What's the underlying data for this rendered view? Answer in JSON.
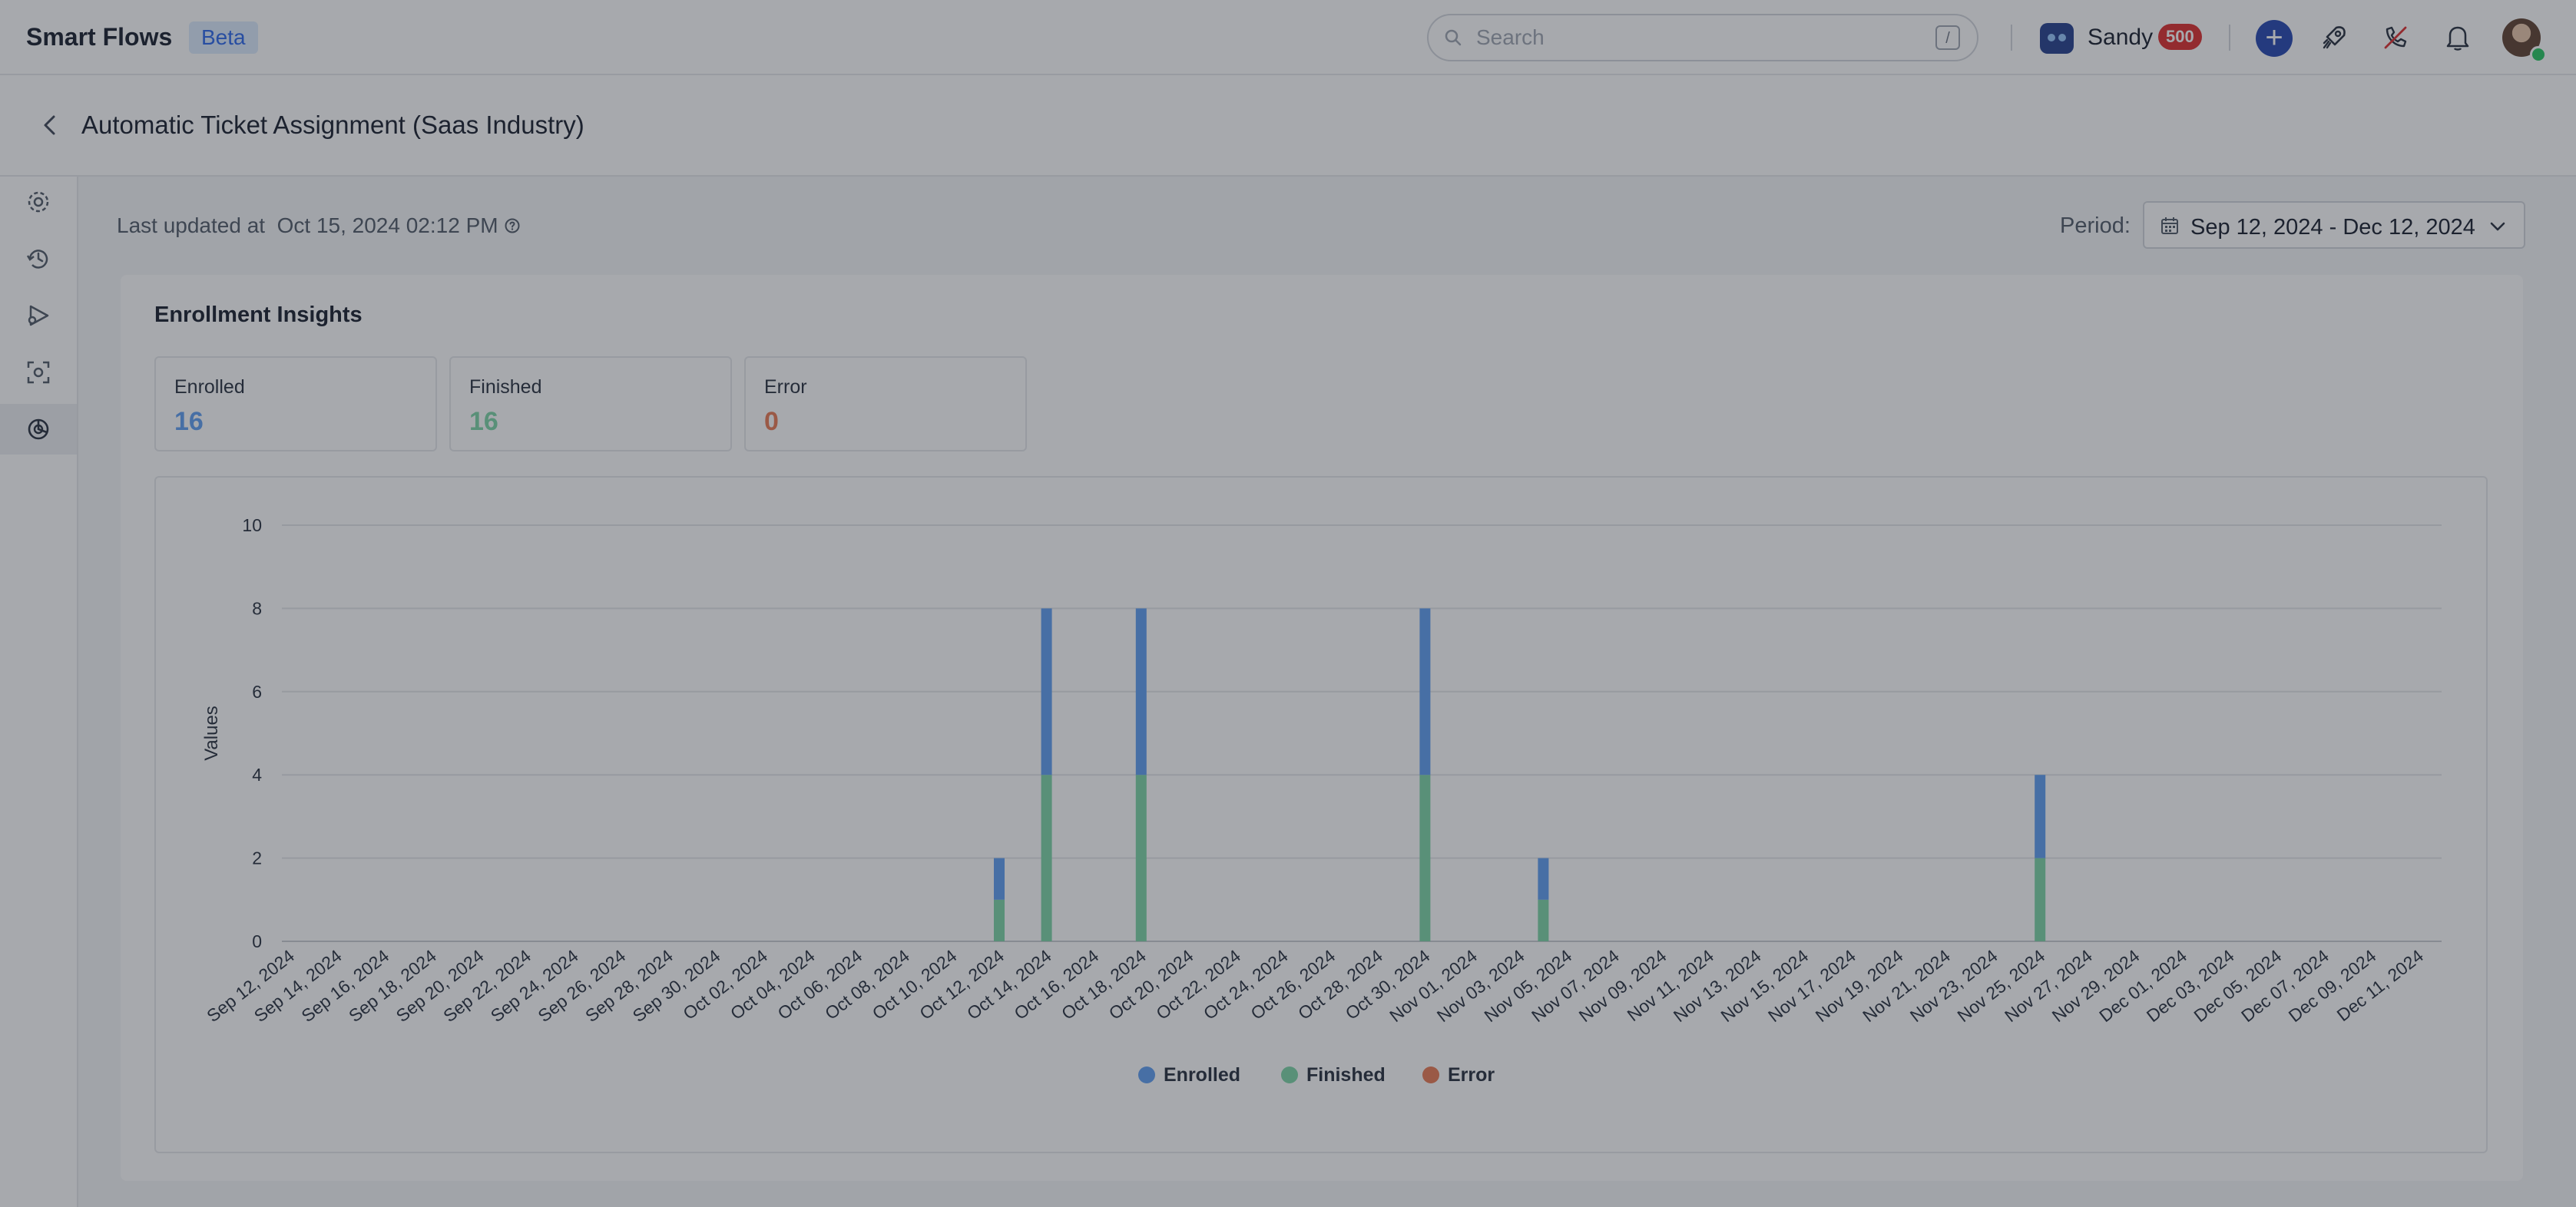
{
  "app": {
    "name": "Smart Flows",
    "badge": "Beta"
  },
  "search": {
    "placeholder": "Search",
    "shortcut": "/"
  },
  "user": {
    "name": "Sandy",
    "credits": "500"
  },
  "topbar_icons": [
    "plus-icon",
    "rocket-icon",
    "phone-off-icon",
    "bell-icon",
    "avatar"
  ],
  "page": {
    "title": "Automatic Ticket Assignment (Saas Industry)"
  },
  "left_rail": [
    {
      "icon": "settings-icon",
      "active": false
    },
    {
      "icon": "history-icon",
      "active": false
    },
    {
      "icon": "flow-icon",
      "active": false
    },
    {
      "icon": "scan-icon",
      "active": false
    },
    {
      "icon": "insights-icon",
      "active": true
    }
  ],
  "status": {
    "last_updated_label": "Last updated at",
    "last_updated_value": "Oct 15, 2024 02:12 PM"
  },
  "period": {
    "label": "Period:",
    "value": "Sep 12, 2024 - Dec 12, 2024"
  },
  "insights": {
    "title": "Enrollment Insights",
    "stats": [
      {
        "label": "Enrolled",
        "value": "16",
        "color": "#5b9cf2"
      },
      {
        "label": "Finished",
        "value": "16",
        "color": "#79d4a4"
      },
      {
        "label": "Error",
        "value": "0",
        "color": "#e8754f"
      }
    ]
  },
  "chart_data": {
    "type": "bar",
    "stacked": true,
    "ylabel": "Values",
    "xlabel": "",
    "ylim": [
      0,
      10
    ],
    "yticks": [
      0,
      2,
      4,
      6,
      8,
      10
    ],
    "grid": true,
    "legend_position": "bottom",
    "categories": [
      "Sep 12, 2024",
      "Sep 14, 2024",
      "Sep 16, 2024",
      "Sep 18, 2024",
      "Sep 20, 2024",
      "Sep 22, 2024",
      "Sep 24, 2024",
      "Sep 26, 2024",
      "Sep 28, 2024",
      "Sep 30, 2024",
      "Oct 02, 2024",
      "Oct 04, 2024",
      "Oct 06, 2024",
      "Oct 08, 2024",
      "Oct 10, 2024",
      "Oct 12, 2024",
      "Oct 14, 2024",
      "Oct 16, 2024",
      "Oct 18, 2024",
      "Oct 20, 2024",
      "Oct 22, 2024",
      "Oct 24, 2024",
      "Oct 26, 2024",
      "Oct 28, 2024",
      "Oct 30, 2024",
      "Nov 01, 2024",
      "Nov 03, 2024",
      "Nov 05, 2024",
      "Nov 07, 2024",
      "Nov 09, 2024",
      "Nov 11, 2024",
      "Nov 13, 2024",
      "Nov 15, 2024",
      "Nov 17, 2024",
      "Nov 19, 2024",
      "Nov 21, 2024",
      "Nov 23, 2024",
      "Nov 25, 2024",
      "Nov 27, 2024",
      "Nov 29, 2024",
      "Dec 01, 2024",
      "Dec 03, 2024",
      "Dec 05, 2024",
      "Dec 07, 2024",
      "Dec 09, 2024",
      "Dec 11, 2024"
    ],
    "bars": [
      {
        "date": "Oct 12, 2024",
        "enrolled": 1,
        "finished": 1,
        "error": 0
      },
      {
        "date": "Oct 14, 2024",
        "enrolled": 4,
        "finished": 4,
        "error": 0
      },
      {
        "date": "Oct 18, 2024",
        "enrolled": 4,
        "finished": 4,
        "error": 0
      },
      {
        "date": "Oct 30, 2024",
        "enrolled": 4,
        "finished": 4,
        "error": 0
      },
      {
        "date": "Nov 04, 2024",
        "enrolled": 1,
        "finished": 1,
        "error": 0
      },
      {
        "date": "Nov 25, 2024",
        "enrolled": 2,
        "finished": 2,
        "error": 0
      }
    ],
    "series": [
      {
        "name": "Enrolled",
        "key": "enrolled",
        "color": "#5b9cf2"
      },
      {
        "name": "Finished",
        "key": "finished",
        "color": "#79d4a4"
      },
      {
        "name": "Error",
        "key": "error",
        "color": "#e8754f"
      }
    ]
  }
}
